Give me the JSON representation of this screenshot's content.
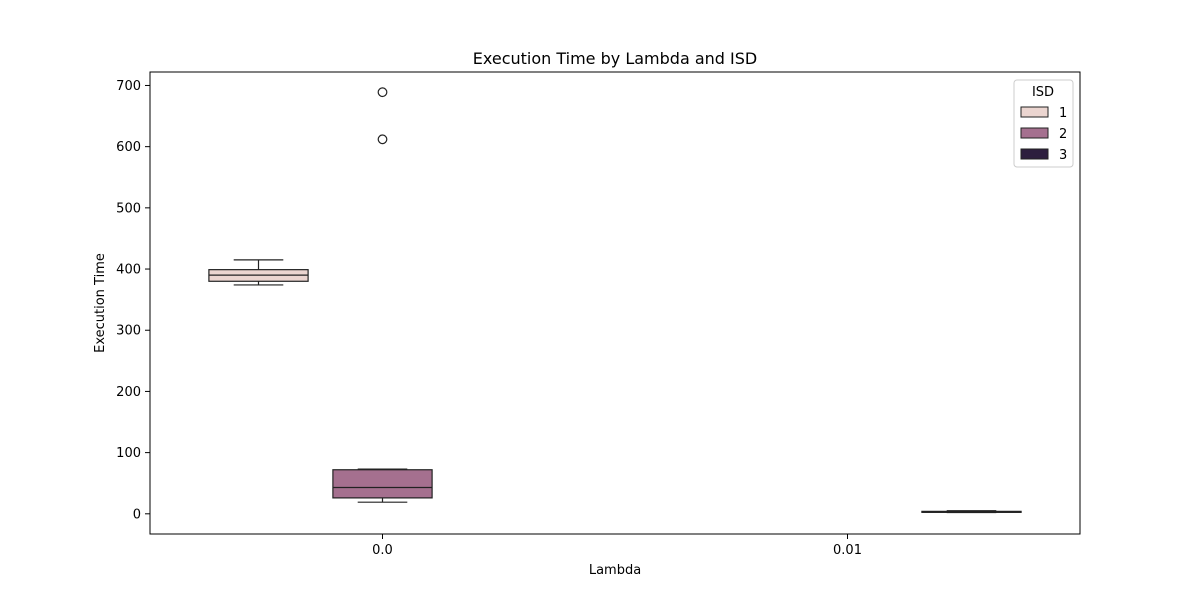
{
  "chart_data": {
    "type": "box",
    "title": "Execution Time by Lambda and ISD",
    "xlabel": "Lambda",
    "ylabel": "Execution Time",
    "categories": [
      "0.0",
      "0.01"
    ],
    "ylim": [
      -33,
      722
    ],
    "yticks": [
      0,
      100,
      200,
      300,
      400,
      500,
      600,
      700
    ],
    "grid": false,
    "legend": {
      "title": "ISD",
      "placement": "top-right"
    },
    "series": [
      {
        "name": "1",
        "color": "#ebd5d0",
        "boxes": [
          {
            "category": "0.0",
            "whisker_low": 374,
            "q1": 380,
            "median": 390,
            "q3": 399,
            "whisker_high": 415,
            "outliers": []
          }
        ]
      },
      {
        "name": "2",
        "color": "#a5708f",
        "boxes": [
          {
            "category": "0.0",
            "whisker_low": 19,
            "q1": 26,
            "median": 43,
            "q3": 72,
            "whisker_high": 73,
            "outliers": [
              612,
              689
            ]
          }
        ]
      },
      {
        "name": "3",
        "color": "#2d1e3e",
        "boxes": [
          {
            "category": "0.01",
            "whisker_low": 2,
            "q1": 2.5,
            "median": 3,
            "q3": 4,
            "whisker_high": 5,
            "outliers": []
          }
        ]
      }
    ]
  }
}
